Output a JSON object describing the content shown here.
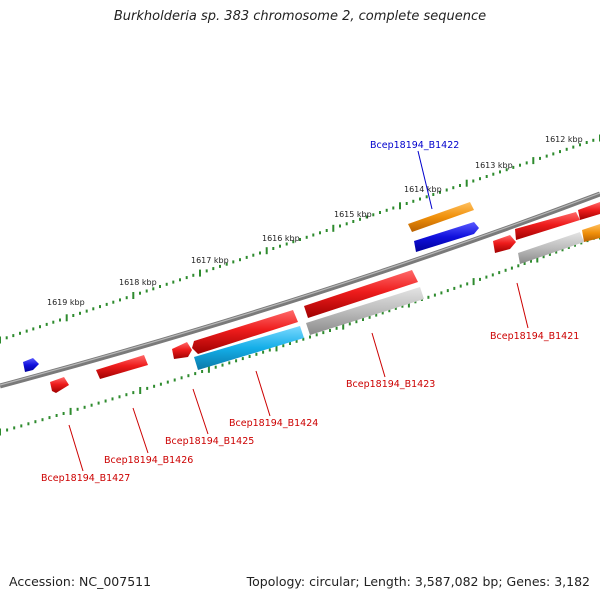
{
  "title": "Burkholderia sp. 383 chromosome 2, complete sequence",
  "footer": {
    "accession": "Accession: NC_007511",
    "summary": "Topology: circular; Length: 3,587,082 bp; Genes: 3,182"
  },
  "colors": {
    "backbone": "#7a7a7a",
    "ticks": "#2e8b2e",
    "forward_gene": "#ee1c1c",
    "reverse_gene": "#ee1c1c",
    "label_reverse": "#cc0000",
    "label_forward": "#0000cc",
    "orange_feature": "#f0900a",
    "blue_feature": "#1010dd",
    "cyan_feature": "#14aee8",
    "gray_feature": "#b8b8b8"
  },
  "scale_labels": [
    "1612 kbp",
    "1613 kbp",
    "1614 kbp",
    "1615 kbp",
    "1616 kbp",
    "1617 kbp",
    "1618 kbp",
    "1619 kbp"
  ],
  "gene_labels": [
    {
      "text": "Bcep18194_B1422",
      "strand": "forward"
    },
    {
      "text": "Bcep18194_B1421",
      "strand": "reverse"
    },
    {
      "text": "Bcep18194_B1423",
      "strand": "reverse"
    },
    {
      "text": "Bcep18194_B1424",
      "strand": "reverse"
    },
    {
      "text": "Bcep18194_B1425",
      "strand": "reverse"
    },
    {
      "text": "Bcep18194_B1426",
      "strand": "reverse"
    },
    {
      "text": "Bcep18194_B1427",
      "strand": "reverse"
    }
  ]
}
